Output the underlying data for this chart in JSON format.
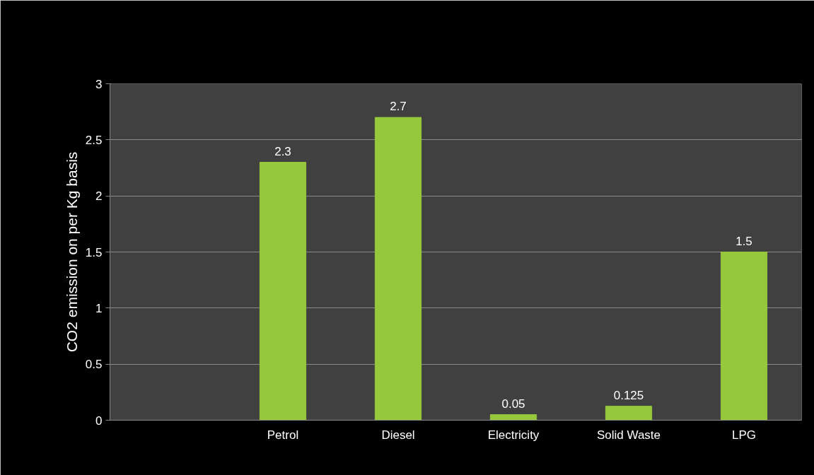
{
  "chart_data": {
    "type": "bar",
    "ylabel": "CO2 emission on per Kg basis",
    "categories": [
      null,
      "Petrol",
      "Diesel",
      "Electricity",
      "Solid Waste",
      "LPG"
    ],
    "values": [
      null,
      2.3,
      2.7,
      0.05,
      0.125,
      1.5
    ],
    "color": "#96c83c",
    "ylim": [
      0,
      3
    ],
    "yticks": [
      0,
      0.5,
      1,
      1.5,
      2,
      2.5,
      3
    ],
    "grid": "y",
    "data_labels": true
  }
}
